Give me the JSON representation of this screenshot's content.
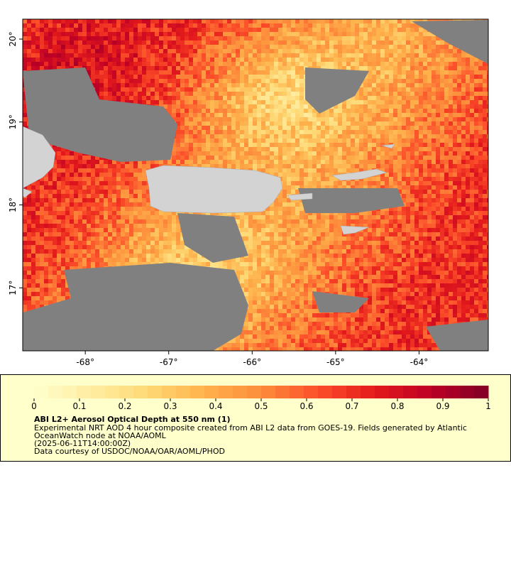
{
  "chart_data": {
    "type": "raster-map",
    "xlim": [
      -68.75,
      -63.17
    ],
    "ylim": [
      16.24,
      20.24
    ],
    "xticks": [
      {
        "value": -68,
        "label": "-68°"
      },
      {
        "value": -67,
        "label": "-67°"
      },
      {
        "value": -66,
        "label": "-66°"
      },
      {
        "value": -65,
        "label": "-65°"
      },
      {
        "value": -64,
        "label": "-64°"
      }
    ],
    "yticks": [
      {
        "value": 17,
        "label": "17°"
      },
      {
        "value": 18,
        "label": "18°"
      },
      {
        "value": 19,
        "label": "19°"
      },
      {
        "value": 20,
        "label": "20°"
      }
    ],
    "colorbar": {
      "lim": [
        0,
        1
      ],
      "ticks": [
        0,
        0.1,
        0.2,
        0.3,
        0.4,
        0.5,
        0.6,
        0.7,
        0.8,
        0.9,
        1
      ],
      "colormap": [
        "#ffffcc",
        "#ffeda0",
        "#fed976",
        "#feb24c",
        "#fd8d3c",
        "#fc4e2a",
        "#e31a1c",
        "#bd0026",
        "#800026"
      ]
    },
    "title": "ABI L2+ Aerosol Optical Depth at 550 nm (1)",
    "description": [
      "Experimental NRT AOD 4 hour composite created from ABI L2 data from GOES-19. Fields generated by Atlantic",
      "OceanWatch node at NOAA/AOML",
      "(2025-06-11T14:00:00Z)",
      "Data courtesy of USDOC/NOAA/OAR/AOML/PHOD"
    ]
  }
}
